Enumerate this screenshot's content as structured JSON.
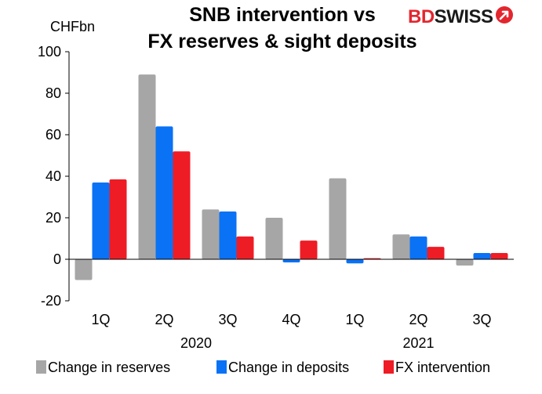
{
  "title_line1": "SNB intervention vs",
  "title_line2": "FX reserves & sight deposits",
  "logo": {
    "part1": "BD",
    "part2": "SWISS"
  },
  "chart_data": {
    "type": "bar",
    "unit_label": "CHFbn",
    "categories": [
      "1Q",
      "2Q",
      "3Q",
      "4Q",
      "1Q",
      "2Q",
      "3Q"
    ],
    "year_labels": [
      {
        "label": "2020",
        "start": 0,
        "end": 3
      },
      {
        "label": "2021",
        "start": 4,
        "end": 6
      }
    ],
    "ylim": [
      -20,
      100
    ],
    "yticks": [
      -20,
      0,
      20,
      40,
      60,
      80,
      100
    ],
    "grid": false,
    "legend_position": "bottom",
    "series": [
      {
        "name": "Change in reserves",
        "color": "#a6a6a6",
        "values": [
          -10,
          89,
          24,
          20,
          39,
          12,
          -3
        ]
      },
      {
        "name": "Change in deposits",
        "color": "#0a72f5",
        "values": [
          37,
          64,
          23,
          -1.5,
          -2,
          11,
          3
        ]
      },
      {
        "name": "FX intervention",
        "color": "#ee1c25",
        "values": [
          38.5,
          52,
          11,
          9,
          0.5,
          6,
          3
        ]
      }
    ]
  }
}
